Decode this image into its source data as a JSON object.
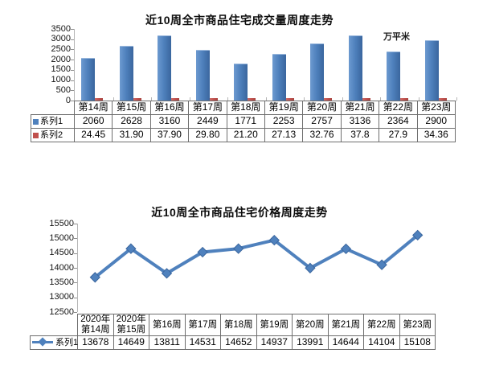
{
  "colors": {
    "series1_blue": "#4f81bd",
    "series1_blue_dark": "#3a669e",
    "series2_red": "#c0504d",
    "axis_gray": "#b5b5b5",
    "table_border_gray": "#6e6e6e"
  },
  "chart_data": [
    {
      "type": "bar",
      "title": "近10周全市商品住宅成交量周度走势",
      "unit_label": "万平米",
      "grid": false,
      "legend_position": "data-table-left",
      "categories": [
        "第14周",
        "第15周",
        "第16周",
        "第17周",
        "第18周",
        "第19周",
        "第20周",
        "第21周",
        "第22周",
        "第23周"
      ],
      "series": [
        {
          "name": "系列1",
          "marker": "square",
          "color": "#4f81bd",
          "values": [
            2060,
            2628,
            3160,
            2449,
            1771,
            2253,
            2757,
            3136,
            2364,
            2900
          ],
          "display": [
            "2060",
            "2628",
            "3160",
            "2449",
            "1771",
            "2253",
            "2757",
            "3136",
            "2364",
            "2900"
          ]
        },
        {
          "name": "系列2",
          "marker": "square",
          "color": "#c0504d",
          "values": [
            24.45,
            31.9,
            37.9,
            29.8,
            21.2,
            27.13,
            32.76,
            37.8,
            27.9,
            34.36
          ],
          "display": [
            "24.45",
            "31.90",
            "37.90",
            "29.80",
            "21.20",
            "27.13",
            "32.76",
            "37.8",
            "27.9",
            "34.36"
          ]
        }
      ],
      "ylim": [
        0,
        3500
      ],
      "ytick_step": 500,
      "yticks": [
        0,
        500,
        1000,
        1500,
        2000,
        2500,
        3000,
        3500
      ]
    },
    {
      "type": "line",
      "title": "近10周全市商品住宅价格周度走势",
      "unit_label": "",
      "grid": false,
      "legend_position": "data-table-left",
      "categories": [
        "2020年\n第14周",
        "2020年\n第15周",
        "第16周",
        "第17周",
        "第18周",
        "第19周",
        "第20周",
        "第21周",
        "第22周",
        "第23周"
      ],
      "series": [
        {
          "name": "系列1",
          "marker": "diamond-line",
          "color": "#4f81bd",
          "values": [
            13678,
            14649,
            13811,
            14531,
            14652,
            14937,
            13991,
            14644,
            14104,
            15108
          ],
          "display": [
            "13678",
            "14649",
            "13811",
            "14531",
            "14652",
            "14937",
            "13991",
            "14644",
            "14104",
            "15108"
          ]
        }
      ],
      "ylim": [
        12500,
        15500
      ],
      "ytick_step": 500,
      "yticks": [
        12500,
        13000,
        13500,
        14000,
        14500,
        15000,
        15500
      ]
    }
  ]
}
